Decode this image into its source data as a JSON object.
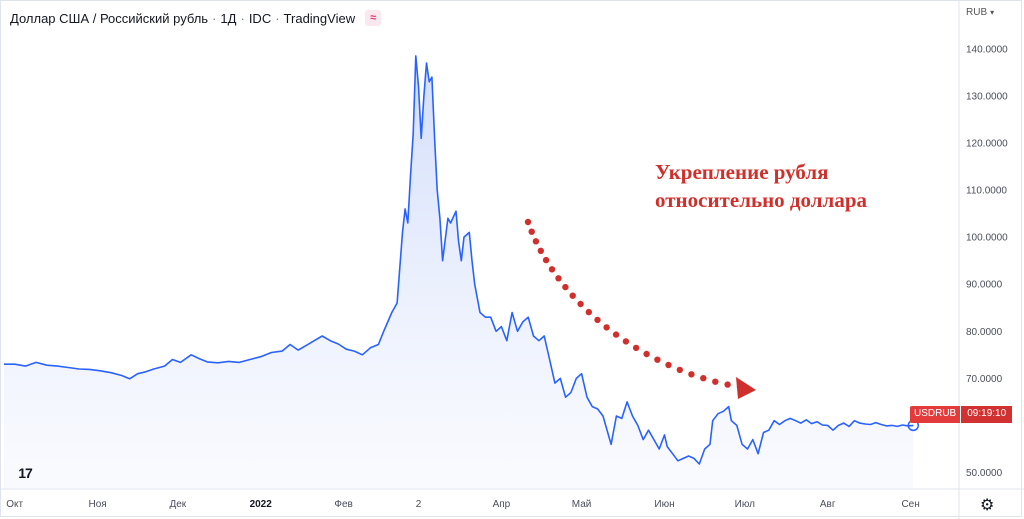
{
  "header": {
    "pair": "Доллар США / Российский рубль",
    "interval": "1Д",
    "source": "IDC",
    "platform": "TradingView",
    "indicator_icon": "≈"
  },
  "currency_label": "RUB",
  "annotation": {
    "line1": "Укрепление рубля",
    "line2": "относительно доллара"
  },
  "price_tag": {
    "symbol": "USDRUB",
    "time": "09:19:10"
  },
  "logo_text": "17",
  "colors": {
    "line": "#2962ff",
    "fill_top": "#cfdbfb",
    "annotation": "#d0302c",
    "tag": "#e33b3b"
  },
  "chart_data": {
    "type": "area",
    "title": "Доллар США / Российский рубль · 1Д · IDC · TradingView",
    "ylabel": "RUB",
    "ylim": [
      46.5,
      144
    ],
    "y_ticks": [
      "140.0000",
      "130.0000",
      "120.0000",
      "110.0000",
      "100.0000",
      "90.0000",
      "80.0000",
      "70.0000",
      "50.0000"
    ],
    "x_ticks": [
      {
        "label": "Окт",
        "pos": 4
      },
      {
        "label": "Ноя",
        "pos": 35
      },
      {
        "label": "Дек",
        "pos": 65
      },
      {
        "label": "2022",
        "pos": 96,
        "bold": true
      },
      {
        "label": "Фев",
        "pos": 127
      },
      {
        "label": "2",
        "pos": 155
      },
      {
        "label": "Апр",
        "pos": 186
      },
      {
        "label": "Май",
        "pos": 216
      },
      {
        "label": "Июн",
        "pos": 247
      },
      {
        "label": "Июл",
        "pos": 277
      },
      {
        "label": "Авг",
        "pos": 308
      },
      {
        "label": "Сен",
        "pos": 339
      }
    ],
    "x_range": [
      0,
      350
    ],
    "series": [
      {
        "values": [
          [
            0,
            73.0
          ],
          [
            4,
            73.0
          ],
          [
            8,
            72.6
          ],
          [
            12,
            73.4
          ],
          [
            16,
            72.8
          ],
          [
            20,
            72.6
          ],
          [
            24,
            72.3
          ],
          [
            28,
            72.0
          ],
          [
            32,
            71.9
          ],
          [
            36,
            71.6
          ],
          [
            40,
            71.2
          ],
          [
            44,
            70.6
          ],
          [
            47,
            69.9
          ],
          [
            50,
            71.0
          ],
          [
            53,
            71.4
          ],
          [
            56,
            72.0
          ],
          [
            60,
            72.6
          ],
          [
            63,
            74.0
          ],
          [
            66,
            73.4
          ],
          [
            70,
            75.0
          ],
          [
            73,
            74.2
          ],
          [
            76,
            73.5
          ],
          [
            80,
            73.3
          ],
          [
            84,
            73.6
          ],
          [
            88,
            73.4
          ],
          [
            92,
            74.0
          ],
          [
            96,
            74.6
          ],
          [
            100,
            75.5
          ],
          [
            104,
            75.8
          ],
          [
            107,
            77.2
          ],
          [
            110,
            76.0
          ],
          [
            113,
            77.0
          ],
          [
            116,
            78.0
          ],
          [
            119,
            79.0
          ],
          [
            122,
            78.0
          ],
          [
            125,
            77.3
          ],
          [
            128,
            76.2
          ],
          [
            131,
            75.8
          ],
          [
            134,
            75.0
          ],
          [
            137,
            76.5
          ],
          [
            140,
            77.2
          ],
          [
            142,
            80.0
          ],
          [
            145,
            84.0
          ],
          [
            147,
            86.0
          ],
          [
            149,
            101.0
          ],
          [
            150,
            106.0
          ],
          [
            151,
            103.0
          ],
          [
            152,
            113.0
          ],
          [
            153,
            122.0
          ],
          [
            154,
            138.5
          ],
          [
            155,
            132.0
          ],
          [
            156,
            121.0
          ],
          [
            157,
            130.0
          ],
          [
            158,
            137.0
          ],
          [
            159,
            133.0
          ],
          [
            160,
            134.0
          ],
          [
            161,
            121.0
          ],
          [
            162,
            110.0
          ],
          [
            163,
            104.0
          ],
          [
            164,
            95.0
          ],
          [
            166,
            104.0
          ],
          [
            167,
            103.0
          ],
          [
            169,
            105.5
          ],
          [
            170,
            99.0
          ],
          [
            171,
            95.0
          ],
          [
            172,
            100.0
          ],
          [
            174,
            101.0
          ],
          [
            175,
            95.0
          ],
          [
            176,
            90.0
          ],
          [
            178,
            84.0
          ],
          [
            180,
            83.0
          ],
          [
            182,
            83.0
          ],
          [
            184,
            80.0
          ],
          [
            186,
            81.0
          ],
          [
            188,
            78.0
          ],
          [
            190,
            84.0
          ],
          [
            192,
            80.0
          ],
          [
            194,
            82.0
          ],
          [
            196,
            83.0
          ],
          [
            198,
            79.0
          ],
          [
            200,
            78.0
          ],
          [
            202,
            79.0
          ],
          [
            204,
            74.0
          ],
          [
            206,
            69.0
          ],
          [
            208,
            70.0
          ],
          [
            210,
            66.0
          ],
          [
            212,
            67.0
          ],
          [
            214,
            70.0
          ],
          [
            216,
            71.0
          ],
          [
            218,
            66.0
          ],
          [
            220,
            64.0
          ],
          [
            222,
            63.5
          ],
          [
            224,
            62.0
          ],
          [
            226,
            58.0
          ],
          [
            227,
            56.0
          ],
          [
            229,
            62.0
          ],
          [
            231,
            61.5
          ],
          [
            233,
            65.0
          ],
          [
            235,
            62.0
          ],
          [
            237,
            60.0
          ],
          [
            239,
            57.0
          ],
          [
            241,
            59.0
          ],
          [
            243,
            57.0
          ],
          [
            245,
            55.0
          ],
          [
            247,
            58.0
          ],
          [
            248,
            55.5
          ],
          [
            250,
            54.0
          ],
          [
            252,
            52.5
          ],
          [
            254,
            53.0
          ],
          [
            256,
            53.5
          ],
          [
            258,
            53.0
          ],
          [
            260,
            51.8
          ],
          [
            262,
            55.0
          ],
          [
            264,
            56.0
          ],
          [
            265,
            61.0
          ],
          [
            267,
            62.5
          ],
          [
            269,
            63.0
          ],
          [
            271,
            64.0
          ],
          [
            272,
            61.0
          ],
          [
            274,
            60.0
          ],
          [
            276,
            56.0
          ],
          [
            278,
            55.0
          ],
          [
            280,
            57.0
          ],
          [
            282,
            54.0
          ],
          [
            284,
            58.5
          ],
          [
            286,
            59.0
          ],
          [
            288,
            61.0
          ],
          [
            290,
            60.2
          ],
          [
            292,
            61.0
          ],
          [
            294,
            61.5
          ],
          [
            296,
            61.0
          ],
          [
            298,
            60.5
          ],
          [
            300,
            61.2
          ],
          [
            302,
            60.4
          ],
          [
            304,
            60.8
          ],
          [
            306,
            60.1
          ],
          [
            308,
            60.0
          ],
          [
            310,
            59.0
          ],
          [
            312,
            60.0
          ],
          [
            314,
            60.5
          ],
          [
            316,
            59.8
          ],
          [
            318,
            61.0
          ],
          [
            320,
            60.5
          ],
          [
            322,
            60.3
          ],
          [
            324,
            60.2
          ],
          [
            326,
            60.6
          ],
          [
            328,
            60.2
          ],
          [
            330,
            59.9
          ],
          [
            332,
            60.0
          ],
          [
            334,
            59.8
          ],
          [
            336,
            60.1
          ],
          [
            338,
            59.9
          ],
          [
            340,
            60.0
          ]
        ]
      }
    ],
    "grid": false,
    "legend": "none"
  }
}
